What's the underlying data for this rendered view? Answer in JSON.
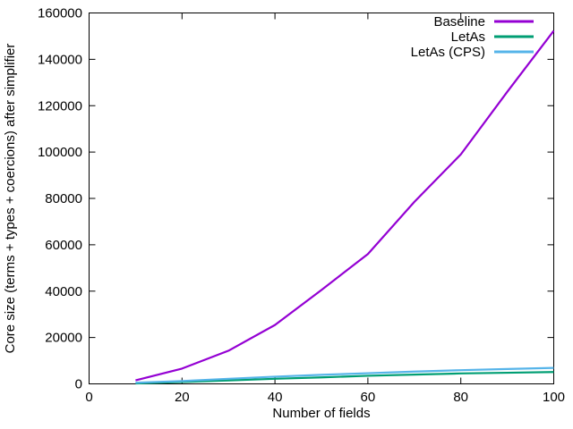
{
  "figure": {
    "background": "#ffffff",
    "border_color": "#000000",
    "text_color": "#000000"
  },
  "chart_data": {
    "type": "line",
    "x": [
      10,
      20,
      30,
      40,
      50,
      60,
      70,
      80,
      90,
      100
    ],
    "series": [
      {
        "name": "Baseline",
        "color": "#9400d3",
        "values": [
          1500,
          6600,
          14300,
          25400,
          40500,
          56000,
          78500,
          99000,
          126000,
          152300
        ]
      },
      {
        "name": "LetAs",
        "color": "#009e73",
        "values": [
          200,
          800,
          1500,
          2200,
          2800,
          3500,
          4000,
          4500,
          4800,
          5100
        ]
      },
      {
        "name": "LetAs (CPS)",
        "color": "#56b4e9",
        "values": [
          500,
          1200,
          2200,
          3100,
          3900,
          4600,
          5300,
          5900,
          6400,
          6900
        ]
      }
    ],
    "title": "",
    "xlabel": "Number of fields",
    "ylabel": "Core size (terms + types + coercions) after simplifier",
    "xlim": [
      0,
      100
    ],
    "ylim": [
      0,
      160000
    ],
    "xticks": [
      0,
      20,
      40,
      60,
      80,
      100
    ],
    "yticks": [
      0,
      20000,
      40000,
      60000,
      80000,
      100000,
      120000,
      140000,
      160000
    ],
    "grid": false,
    "legend_position": "top-right-inside",
    "tick_style": "inward-mirrored"
  }
}
